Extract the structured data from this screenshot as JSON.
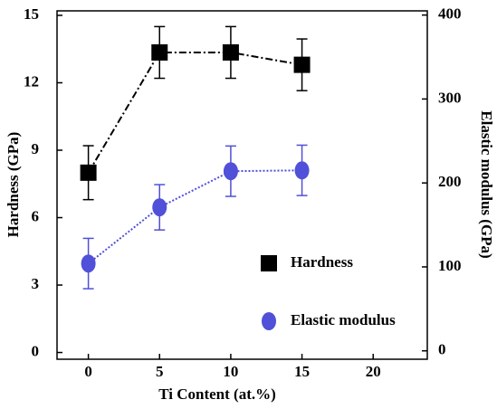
{
  "chart_data": {
    "type": "line",
    "x": [
      0,
      5,
      10,
      15
    ],
    "xlim": [
      -2.2,
      23.8
    ],
    "xticks": [
      0,
      5,
      10,
      15,
      20
    ],
    "ylim": [
      -0.3,
      15.2
    ],
    "yticks": [
      0,
      3,
      6,
      9,
      12,
      15
    ],
    "y2lim": [
      -10,
      405
    ],
    "y2ticks": [
      0,
      100,
      200,
      300,
      400
    ],
    "xlabel": "Ti Content (at.%)",
    "ylabel": "Hardness (GPa)",
    "y2label": "Elastic modulus (GPa)",
    "legend": "lower right",
    "series": [
      {
        "name": "Hardness",
        "color": "#000000",
        "marker": "square",
        "linestyle": "dashdot",
        "values": [
          8.0,
          13.35,
          13.35,
          12.8
        ],
        "errors": [
          1.2,
          1.15,
          1.15,
          1.15
        ]
      },
      {
        "name": "Elastic modulus",
        "color": "#5050d8",
        "marker": "circle",
        "linestyle": "dotted",
        "axis": "y2",
        "values": [
          104,
          171,
          214,
          215
        ],
        "errors": [
          30,
          27,
          30,
          30
        ]
      }
    ]
  }
}
